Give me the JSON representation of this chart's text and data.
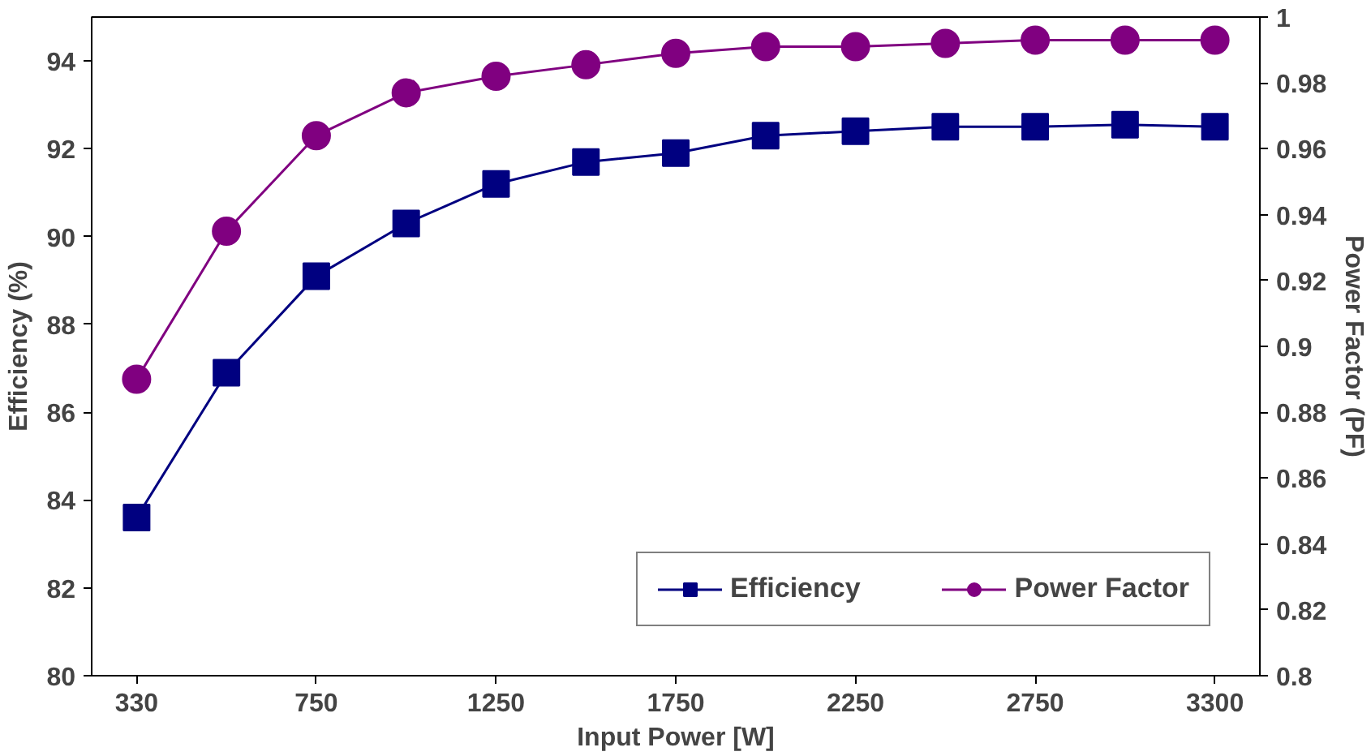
{
  "chart_data": {
    "type": "line",
    "xlabel": "Input Power [W]",
    "ylabel": "Efficiency (%)",
    "y2label": "Power Factor (PF)",
    "categories": [
      "330",
      null,
      "750",
      null,
      "1250",
      null,
      "1750",
      null,
      "2250",
      null,
      "2750",
      null,
      "3300"
    ],
    "series": [
      {
        "name": "Efficiency",
        "color": "#000080",
        "marker": "square",
        "values": [
          83.6,
          86.9,
          89.1,
          90.3,
          91.2,
          91.7,
          91.9,
          92.3,
          92.4,
          92.5,
          92.5,
          92.55,
          92.5
        ]
      },
      {
        "name": "Power Factor",
        "color": "#800080",
        "marker": "circle",
        "axis": "y2",
        "values": [
          0.89,
          0.935,
          0.964,
          0.977,
          0.982,
          0.9855,
          0.989,
          0.991,
          0.991,
          0.992,
          0.993,
          0.993,
          0.993
        ]
      }
    ],
    "ylim": [
      80,
      95
    ],
    "yticks": [
      80,
      82,
      84,
      86,
      88,
      90,
      92,
      94
    ],
    "y2lim": [
      0.8,
      1
    ],
    "y2ticks": [
      0.8,
      0.82,
      0.84,
      0.86,
      0.88,
      0.9,
      0.92,
      0.94,
      0.96,
      0.98,
      1
    ],
    "grid": false,
    "legend": "bottom right"
  }
}
